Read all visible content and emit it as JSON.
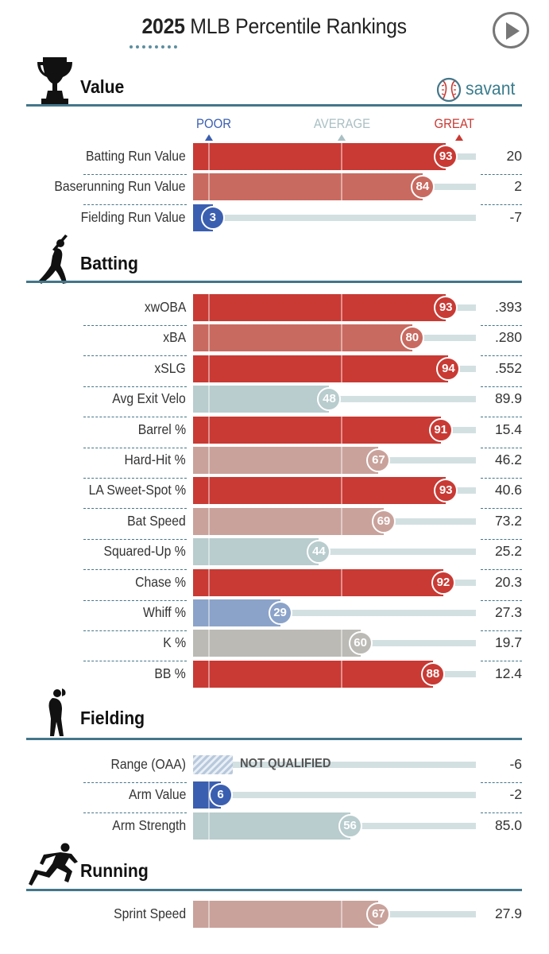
{
  "header": {
    "year": "2025",
    "title_rest": "MLB Percentile Rankings",
    "play_icon": "play-icon"
  },
  "logo": {
    "text": "savant",
    "icon": "baseball-icon"
  },
  "scale": {
    "poor": "POOR",
    "average": "AVERAGE",
    "great": "GREAT"
  },
  "colors": {
    "great": "#c93a34",
    "good": "#c96a60",
    "above": "#c9a29b",
    "average": "#bcbab5",
    "below_avg_teal": "#b9ccce",
    "poor_light": "#8ba3c9",
    "poor": "#3b5fb0",
    "accent": "#43768a"
  },
  "sections": [
    {
      "title": "Value",
      "icon": "trophy-icon",
      "rows": [
        {
          "label": "Batting Run Value",
          "pct": 93,
          "value": "20"
        },
        {
          "label": "Baserunning Run Value",
          "pct": 84,
          "value": "2"
        },
        {
          "label": "Fielding Run Value",
          "pct": 3,
          "value": "-7"
        }
      ]
    },
    {
      "title": "Batting",
      "icon": "batter-icon",
      "rows": [
        {
          "label": "xwOBA",
          "pct": 93,
          "value": ".393"
        },
        {
          "label": "xBA",
          "pct": 80,
          "value": ".280"
        },
        {
          "label": "xSLG",
          "pct": 94,
          "value": ".552"
        },
        {
          "label": "Avg Exit Velo",
          "pct": 48,
          "value": "89.9"
        },
        {
          "label": "Barrel %",
          "pct": 91,
          "value": "15.4"
        },
        {
          "label": "Hard-Hit %",
          "pct": 67,
          "value": "46.2"
        },
        {
          "label": "LA Sweet-Spot %",
          "pct": 93,
          "value": "40.6"
        },
        {
          "label": "Bat Speed",
          "pct": 69,
          "value": "73.2"
        },
        {
          "label": "Squared-Up %",
          "pct": 44,
          "value": "25.2"
        },
        {
          "label": "Chase %",
          "pct": 92,
          "value": "20.3"
        },
        {
          "label": "Whiff %",
          "pct": 29,
          "value": "27.3"
        },
        {
          "label": "K %",
          "pct": 60,
          "value": "19.7"
        },
        {
          "label": "BB %",
          "pct": 88,
          "value": "12.4"
        }
      ]
    },
    {
      "title": "Fielding",
      "icon": "fielder-icon",
      "rows": [
        {
          "label": "Range (OAA)",
          "pct": null,
          "value": "-6",
          "note": "NOT QUALIFIED"
        },
        {
          "label": "Arm Value",
          "pct": 6,
          "value": "-2"
        },
        {
          "label": "Arm Strength",
          "pct": 56,
          "value": "85.0"
        }
      ]
    },
    {
      "title": "Running",
      "icon": "runner-icon",
      "rows": [
        {
          "label": "Sprint Speed",
          "pct": 67,
          "value": "27.9"
        }
      ]
    }
  ]
}
